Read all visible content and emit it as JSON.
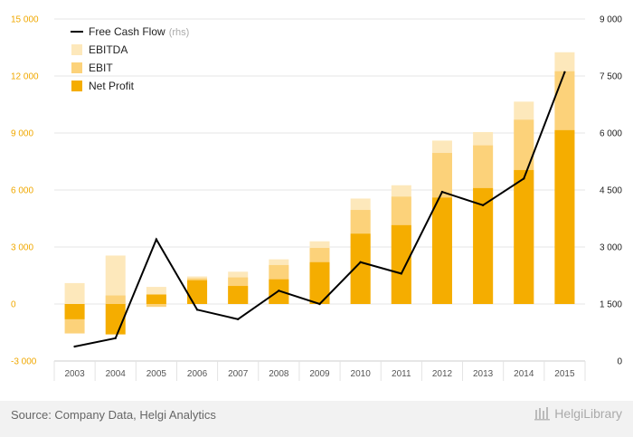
{
  "chart_data": {
    "type": "bar",
    "categories": [
      "2003",
      "2004",
      "2005",
      "2006",
      "2007",
      "2008",
      "2009",
      "2010",
      "2011",
      "2012",
      "2013",
      "2014",
      "2015"
    ],
    "series": [
      {
        "name": "EBITDA",
        "values": [
          1100,
          2550,
          900,
          1450,
          1700,
          2350,
          3300,
          5550,
          6250,
          8600,
          9050,
          10650,
          13250
        ],
        "color": "#fde8bb"
      },
      {
        "name": "EBIT",
        "values": [
          -1550,
          450,
          -150,
          1350,
          1400,
          2050,
          2950,
          4950,
          5650,
          7950,
          8350,
          9700,
          12250
        ],
        "color": "#fcd27a"
      },
      {
        "name": "Net Profit",
        "values": [
          -800,
          -1600,
          500,
          1250,
          950,
          1300,
          2200,
          3700,
          4150,
          5600,
          6100,
          7050,
          9150
        ],
        "color": "#f5ad00"
      },
      {
        "name": "Free Cash Flow",
        "axis": "right",
        "values": [
          380,
          600,
          3200,
          1350,
          1100,
          1850,
          1500,
          2600,
          2300,
          4450,
          4100,
          4800,
          7600
        ],
        "color": "#000000"
      }
    ],
    "ylim": [
      -3000,
      15000
    ],
    "yticks": [
      "-3 000",
      "0",
      "3 000",
      "6 000",
      "9 000",
      "12 000",
      "15 000"
    ],
    "y2lim": [
      0,
      9000
    ],
    "y2ticks": [
      "0",
      "1 500",
      "3 000",
      "4 500",
      "6 000",
      "7 500",
      "9 000"
    ],
    "legend": {
      "placement": "top-left",
      "items": [
        {
          "label": "Free Cash Flow",
          "note": "(rhs)",
          "kind": "line"
        },
        {
          "label": "EBITDA",
          "kind": "swatch",
          "color": "#fde8bb"
        },
        {
          "label": "EBIT",
          "kind": "swatch",
          "color": "#fcd27a"
        },
        {
          "label": "Net Profit",
          "kind": "swatch",
          "color": "#f5ad00"
        }
      ]
    },
    "grid": true
  },
  "footer": {
    "source": "Source: Company Data, Helgi Analytics",
    "logo": "HelgiLibrary"
  }
}
